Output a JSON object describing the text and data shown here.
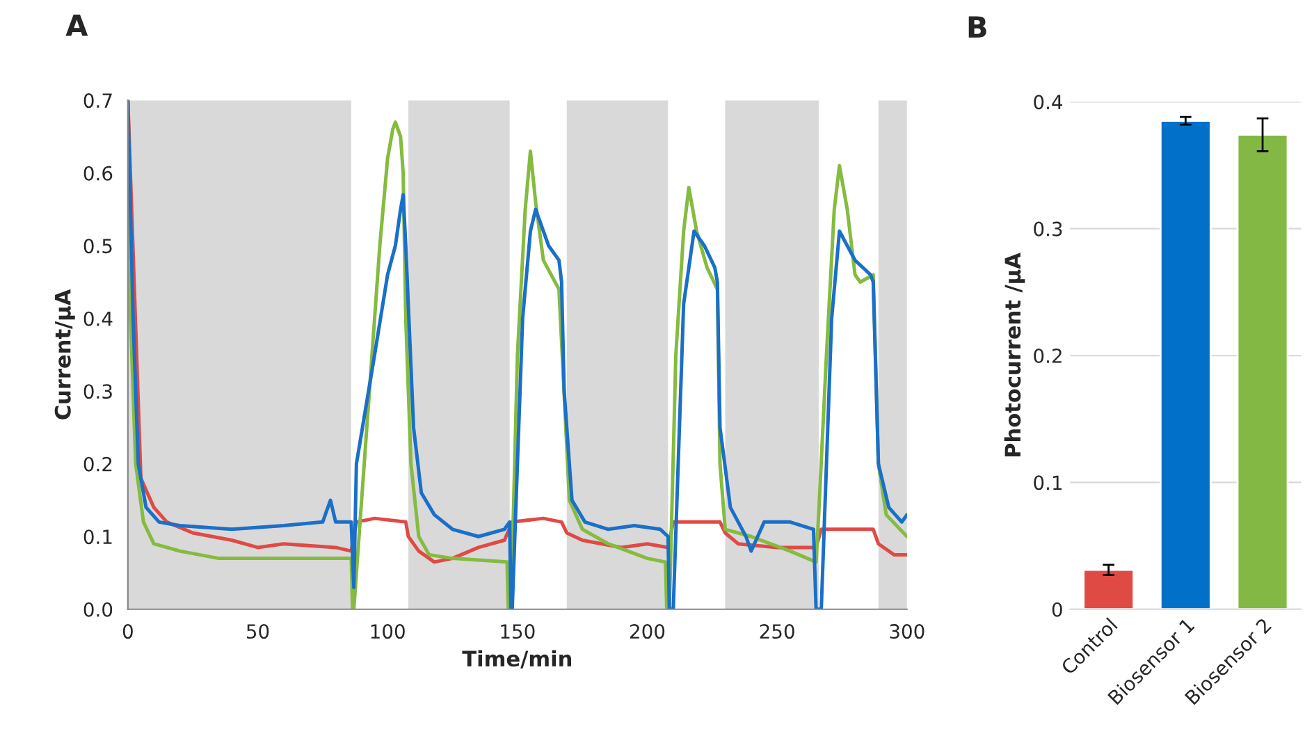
{
  "chart_data": [
    {
      "type": "line",
      "xlabel": "Time/min",
      "ylabel": "Current/µA",
      "annotations": [
        "A"
      ],
      "xlim": [
        0,
        300
      ],
      "xticks": [
        0,
        50,
        100,
        150,
        200,
        250,
        300
      ],
      "ylim": [
        0,
        0.7
      ],
      "yticks": [
        {
          "value": 0,
          "label": "0.0"
        },
        0.1,
        0.2,
        0.3,
        0.4,
        0.5,
        0.6,
        0.7
      ],
      "grid": false,
      "bands": [
        {
          "axis": "x",
          "from": 0,
          "to": 86,
          "color": "#d9d9d9"
        },
        {
          "axis": "x",
          "from": 108,
          "to": 147,
          "color": "#d9d9d9"
        },
        {
          "axis": "x",
          "from": 169,
          "to": 208,
          "color": "#d9d9d9"
        },
        {
          "axis": "x",
          "from": 230,
          "to": 266,
          "color": "#d9d9d9"
        },
        {
          "axis": "x",
          "from": 289,
          "to": 300,
          "color": "#d9d9d9"
        }
      ],
      "series": [
        {
          "color": "#e04a45",
          "x": [
            0,
            5,
            10,
            15,
            25,
            40,
            50,
            60,
            80,
            86,
            88,
            95,
            107,
            108,
            112,
            118,
            125,
            135,
            145,
            148,
            160,
            167,
            169,
            175,
            190,
            200,
            208,
            210,
            228,
            230,
            235,
            250,
            265,
            267,
            287,
            289,
            295,
            300
          ],
          "values": [
            0.7,
            0.18,
            0.14,
            0.12,
            0.105,
            0.095,
            0.085,
            0.09,
            0.085,
            0.08,
            0.12,
            0.125,
            0.12,
            0.1,
            0.08,
            0.065,
            0.07,
            0.085,
            0.095,
            0.12,
            0.125,
            0.12,
            0.105,
            0.095,
            0.085,
            0.09,
            0.085,
            0.12,
            0.12,
            0.105,
            0.09,
            0.085,
            0.085,
            0.11,
            0.11,
            0.09,
            0.075,
            0.075
          ]
        },
        {
          "color": "#85bb3f",
          "x": [
            0,
            1,
            3,
            6,
            10,
            20,
            35,
            60,
            86,
            86.5,
            87,
            89,
            93,
            97,
            100,
            102,
            103,
            105,
            106,
            107,
            109,
            112,
            116,
            125,
            146,
            146.5,
            147.5,
            150,
            153,
            155,
            157,
            160,
            166,
            170,
            175,
            185,
            200,
            207,
            207.5,
            208.5,
            211,
            214,
            216,
            219,
            223,
            227,
            228,
            230,
            240,
            255,
            265,
            266,
            269,
            272,
            274,
            277,
            280,
            282,
            287,
            289,
            292,
            300
          ],
          "values": [
            0.7,
            0.4,
            0.2,
            0.12,
            0.09,
            0.08,
            0.07,
            0.07,
            0.07,
            0.0,
            0.0,
            0.1,
            0.3,
            0.5,
            0.62,
            0.66,
            0.67,
            0.65,
            0.6,
            0.4,
            0.2,
            0.1,
            0.075,
            0.07,
            0.065,
            0.0,
            0.0,
            0.35,
            0.55,
            0.63,
            0.56,
            0.48,
            0.44,
            0.15,
            0.11,
            0.09,
            0.07,
            0.065,
            0.0,
            0.0,
            0.35,
            0.52,
            0.58,
            0.52,
            0.47,
            0.44,
            0.2,
            0.11,
            0.1,
            0.08,
            0.065,
            0.13,
            0.35,
            0.55,
            0.61,
            0.55,
            0.46,
            0.45,
            0.46,
            0.2,
            0.13,
            0.1
          ]
        },
        {
          "color": "#1a6fc9",
          "x": [
            0,
            2,
            4,
            7,
            12,
            20,
            40,
            60,
            75,
            78,
            80,
            86,
            87,
            88,
            95,
            100,
            103,
            105,
            106,
            107,
            110,
            113,
            118,
            125,
            135,
            145,
            147,
            147.5,
            148,
            152,
            155,
            157,
            162,
            166,
            167,
            168,
            171,
            176,
            185,
            195,
            205,
            208,
            208.5,
            210,
            214,
            218,
            222,
            226,
            227,
            228,
            232,
            238,
            240,
            245,
            255,
            264,
            265,
            267,
            271,
            274,
            280,
            286,
            287,
            289,
            293,
            298,
            300
          ],
          "values": [
            0.7,
            0.4,
            0.2,
            0.14,
            0.12,
            0.115,
            0.11,
            0.115,
            0.12,
            0.15,
            0.12,
            0.12,
            0.03,
            0.2,
            0.35,
            0.46,
            0.5,
            0.55,
            0.57,
            0.5,
            0.25,
            0.16,
            0.13,
            0.11,
            0.1,
            0.11,
            0.12,
            0.0,
            0.0,
            0.4,
            0.52,
            0.55,
            0.5,
            0.48,
            0.45,
            0.3,
            0.15,
            0.12,
            0.11,
            0.115,
            0.11,
            0.1,
            0.0,
            0.0,
            0.42,
            0.52,
            0.5,
            0.47,
            0.45,
            0.25,
            0.14,
            0.1,
            0.08,
            0.12,
            0.12,
            0.11,
            0.0,
            0.0,
            0.4,
            0.52,
            0.48,
            0.46,
            0.45,
            0.2,
            0.14,
            0.12,
            0.13
          ]
        }
      ]
    },
    {
      "type": "bar",
      "ylabel": "Photocurrent /µA",
      "annotations": [
        "B"
      ],
      "categories": [
        "Control",
        "Biosensor 1",
        "Biosensor 2"
      ],
      "values": [
        0.031,
        0.385,
        0.374
      ],
      "errors": [
        0.004,
        0.003,
        0.013
      ],
      "colors": [
        "#e04a45",
        "#0070c8",
        "#84b844"
      ],
      "ylim": [
        0,
        0.4
      ],
      "yticks": [
        0,
        0.1,
        0.2,
        0.3,
        0.4
      ],
      "grid": "y"
    }
  ]
}
